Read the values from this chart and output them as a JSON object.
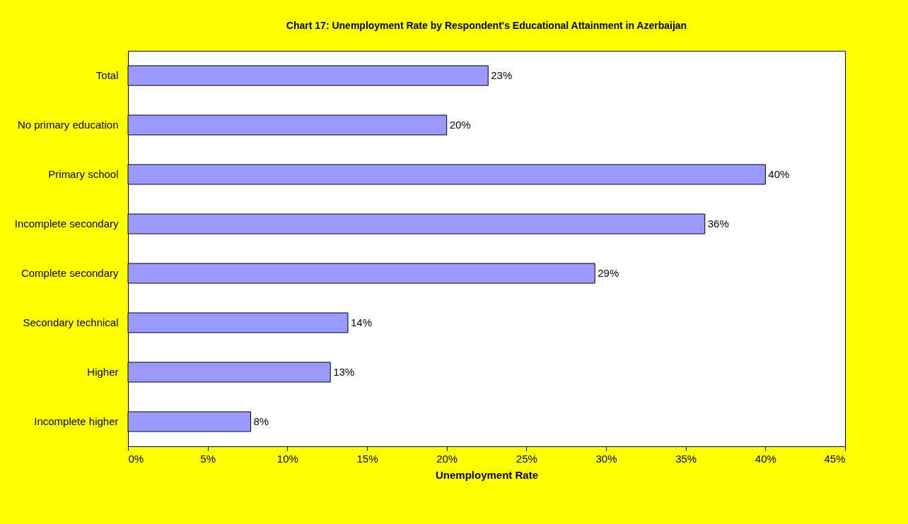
{
  "chart_data": {
    "type": "bar",
    "orientation": "horizontal",
    "title": "Chart 17: Unemployment Rate by Respondent's Educational Attainment in Azerbaijan",
    "xlabel": "Unemployment Rate",
    "categories": [
      "Total",
      "No primary education",
      "Primary school",
      "Incomplete secondary",
      "Complete secondary",
      "Secondary technical",
      "Higher",
      "Incomplete higher"
    ],
    "values": [
      22.6,
      20.0,
      40.0,
      36.2,
      29.3,
      13.8,
      12.7,
      7.7
    ],
    "value_labels": [
      "23%",
      "20%",
      "40%",
      "36%",
      "29%",
      "14%",
      "13%",
      "8%"
    ],
    "color": "#9999ff",
    "xlim": [
      0,
      45
    ],
    "xticks": [
      {
        "value": 0,
        "label": "0%"
      },
      {
        "value": 5,
        "label": "5%"
      },
      {
        "value": 10,
        "label": "10%"
      },
      {
        "value": 15,
        "label": "15%"
      },
      {
        "value": 20,
        "label": "20%"
      },
      {
        "value": 25,
        "label": "25%"
      },
      {
        "value": 30,
        "label": "30%"
      },
      {
        "value": 35,
        "label": "35%"
      },
      {
        "value": 40,
        "label": "40%"
      },
      {
        "value": 45,
        "label": "45%"
      }
    ]
  }
}
